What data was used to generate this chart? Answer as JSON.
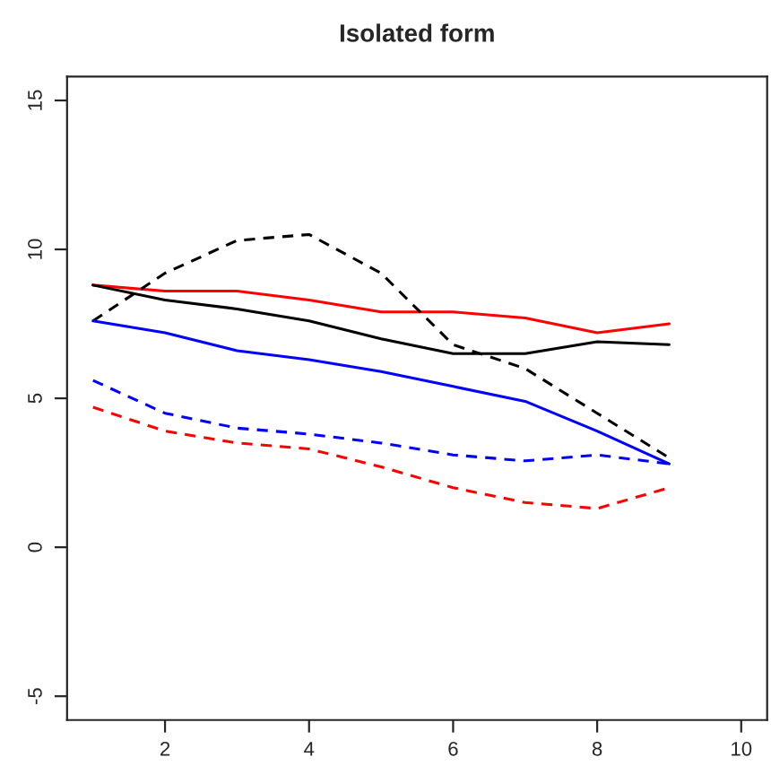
{
  "chart_data": {
    "type": "line",
    "title": "Isolated form",
    "x": [
      1,
      2,
      3,
      4,
      5,
      6,
      7,
      8,
      9
    ],
    "xlim": [
      0.64,
      10.36
    ],
    "xticks": [
      2,
      4,
      6,
      8,
      10
    ],
    "ylim": [
      -5.8,
      15.8
    ],
    "yticks": [
      -5,
      0,
      5,
      10,
      15
    ],
    "grid": false,
    "legend": false,
    "marker": "none",
    "series": [
      {
        "color": "#ff0000",
        "line_style": "solid",
        "values": [
          8.8,
          8.6,
          8.6,
          8.3,
          7.9,
          7.9,
          7.7,
          7.2,
          7.5
        ]
      },
      {
        "color": "#000000",
        "line_style": "solid",
        "values": [
          8.8,
          8.3,
          8.0,
          7.6,
          7.0,
          6.5,
          6.5,
          6.9,
          6.8
        ]
      },
      {
        "color": "#000000",
        "line_style": "dashed",
        "values": [
          7.6,
          9.2,
          10.3,
          10.5,
          9.2,
          6.8,
          6.0,
          4.5,
          3.0
        ]
      },
      {
        "color": "#0000ff",
        "line_style": "solid",
        "values": [
          7.6,
          7.2,
          6.6,
          6.3,
          5.9,
          5.4,
          4.9,
          3.9,
          2.8
        ]
      },
      {
        "color": "#0000ff",
        "line_style": "dashed",
        "values": [
          5.6,
          4.5,
          4.0,
          3.8,
          3.5,
          3.1,
          2.9,
          3.1,
          2.8
        ]
      },
      {
        "color": "#ff0000",
        "line_style": "dashed",
        "values": [
          4.7,
          3.9,
          3.5,
          3.3,
          2.7,
          2.0,
          1.5,
          1.3,
          2.0
        ]
      }
    ]
  }
}
